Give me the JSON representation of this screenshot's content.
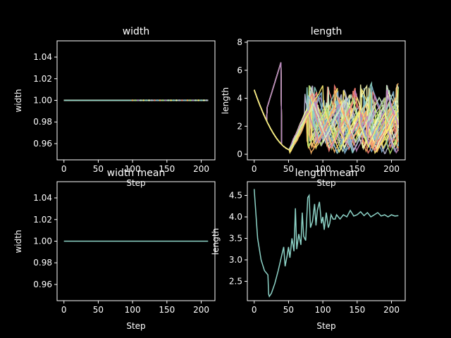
{
  "chart_data": [
    {
      "type": "line",
      "title": "width",
      "xlabel": "Step",
      "ylabel": "width",
      "xlim": [
        -10,
        220
      ],
      "ylim": [
        0.945,
        1.055
      ],
      "xticks": [
        0,
        50,
        100,
        150,
        200
      ],
      "yticks": [
        0.96,
        0.98,
        1.0,
        1.02,
        1.04
      ],
      "ytick_format": 2,
      "grid": false,
      "series_count": 40,
      "series_note": "every series constant at 1.0",
      "x": [
        0,
        210
      ],
      "values": [
        1.0,
        1.0
      ]
    },
    {
      "type": "line",
      "title": "length",
      "xlabel": "Step",
      "ylabel": "length",
      "xlim": [
        -10,
        220
      ],
      "ylim": [
        -0.4,
        8.1
      ],
      "xticks": [
        0,
        50,
        100,
        150,
        200
      ],
      "yticks": [
        0,
        2,
        4,
        6,
        8
      ],
      "ytick_format": 0,
      "grid": false,
      "series_count": 40,
      "series_note": "sawtooth traces: start at ~4.6, decay toward ~0.3 near step 55, then rise and reset repeatedly, densely covering 0-7.6 after step 100"
    },
    {
      "type": "line",
      "title": "width mean",
      "xlabel": "Step",
      "ylabel": "width",
      "xlim": [
        -10,
        220
      ],
      "ylim": [
        0.945,
        1.055
      ],
      "xticks": [
        0,
        50,
        100,
        150,
        200
      ],
      "yticks": [
        0.96,
        0.98,
        1.0,
        1.02,
        1.04
      ],
      "ytick_format": 2,
      "grid": false,
      "x": [
        0,
        210
      ],
      "values": [
        1.0,
        1.0
      ]
    },
    {
      "type": "line",
      "title": "length mean",
      "xlabel": "Step",
      "ylabel": "length",
      "xlim": [
        -10,
        220
      ],
      "ylim": [
        2.05,
        4.82
      ],
      "xticks": [
        0,
        50,
        100,
        150,
        200
      ],
      "yticks": [
        2.5,
        3.0,
        3.5,
        4.0,
        4.5
      ],
      "ytick_format": 1,
      "grid": false,
      "x": [
        0,
        5,
        10,
        15,
        20,
        21,
        22,
        25,
        30,
        35,
        40,
        43,
        45,
        48,
        50,
        52,
        55,
        58,
        60,
        62,
        65,
        68,
        70,
        72,
        75,
        78,
        80,
        82,
        85,
        88,
        90,
        92,
        95,
        98,
        100,
        102,
        105,
        108,
        110,
        112,
        115,
        118,
        120,
        125,
        130,
        135,
        140,
        145,
        150,
        155,
        160,
        165,
        170,
        175,
        180,
        185,
        190,
        195,
        200,
        205,
        210
      ],
      "values": [
        4.65,
        3.5,
        3.0,
        2.75,
        2.65,
        2.2,
        2.15,
        2.22,
        2.45,
        2.75,
        3.1,
        3.3,
        2.85,
        3.1,
        3.3,
        3.05,
        3.5,
        3.2,
        4.2,
        3.25,
        3.6,
        3.35,
        4.1,
        3.55,
        3.45,
        4.45,
        4.5,
        3.75,
        3.9,
        4.3,
        3.8,
        4.15,
        4.35,
        3.85,
        4.0,
        3.7,
        4.1,
        3.75,
        3.85,
        4.05,
        3.95,
        3.95,
        4.05,
        3.95,
        4.05,
        4.0,
        4.15,
        4.02,
        4.05,
        4.12,
        4.03,
        4.1,
        4.0,
        4.05,
        4.1,
        4.02,
        4.05,
        4.0,
        4.05,
        4.02,
        4.03
      ]
    }
  ],
  "palette": [
    "#8dd3c7",
    "#feffb3",
    "#bfbbd9",
    "#fa8174",
    "#81b1d2",
    "#fdb462",
    "#b3de69",
    "#bc82bd",
    "#ccebc4",
    "#ffed6f"
  ],
  "colors": {
    "background": "#000000",
    "axes": "#ffffff",
    "mean_line": "#8dd3c7"
  }
}
